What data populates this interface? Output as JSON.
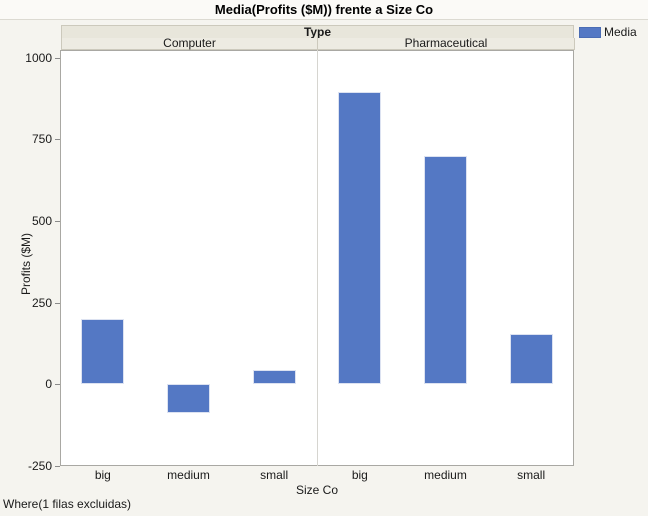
{
  "chart_data": {
    "type": "bar",
    "title": "Media(Profits ($M)) frente a Size Co",
    "panel_header": "Type",
    "xlabel": "Size Co",
    "ylabel": "Profits ($M)",
    "ylim": [
      -250,
      1000
    ],
    "yticks": [
      1000,
      750,
      500,
      250,
      0,
      -250
    ],
    "grid": false,
    "categories": [
      "big",
      "medium",
      "small"
    ],
    "groups": [
      {
        "label": "Computer",
        "values": [
          200,
          -88,
          45
        ]
      },
      {
        "label": "Pharmaceutical",
        "values": [
          895,
          700,
          155
        ]
      }
    ],
    "series_name": "Media",
    "bar_color": "#5478c4",
    "bar_border_color": "#dce2f1",
    "legend": {
      "position": "top-right",
      "label": "Media",
      "color": "#5478c4"
    },
    "footer": "Where(1 filas excluidas)"
  }
}
